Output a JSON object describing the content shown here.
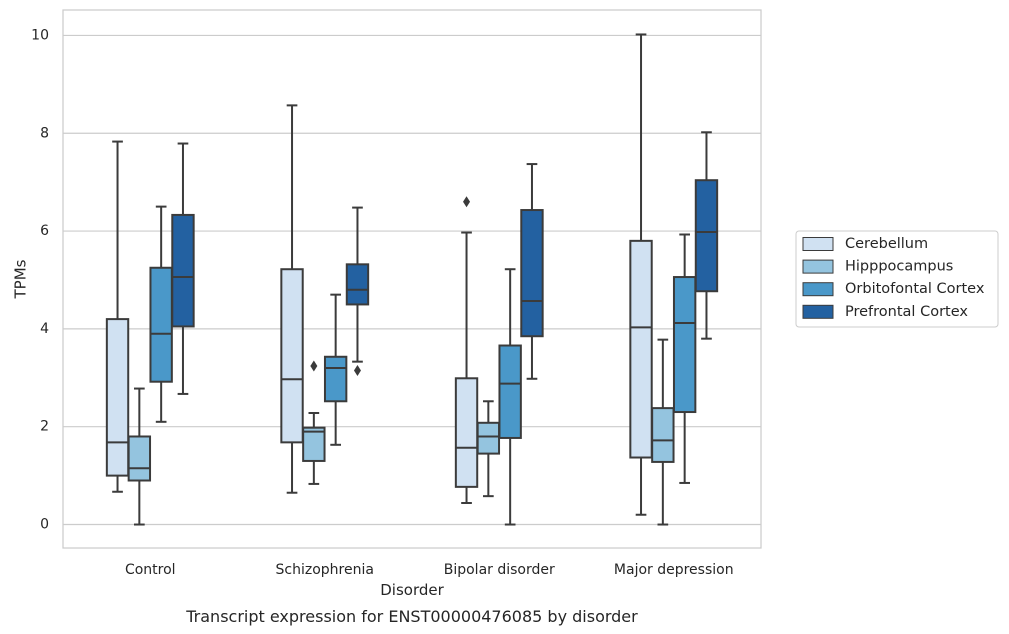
{
  "chart_data": {
    "type": "boxplot",
    "caption": "Transcript expression for ENST00000476085 by disorder",
    "xlabel": "Disorder",
    "ylabel": "TPMs",
    "ylim": [
      -0.48,
      10.52
    ],
    "yticks": [
      0,
      2,
      4,
      6,
      8,
      10
    ],
    "grid": true,
    "legend_position": "right",
    "categories": [
      "Control",
      "Schizophrenia",
      "Bipolar disorder",
      "Major depression"
    ],
    "series": [
      {
        "name": "Cerebellum",
        "color": "#d0e1f2",
        "boxes": [
          {
            "whislo": 0.67,
            "q1": 1.0,
            "med": 1.68,
            "q3": 4.2,
            "whishi": 7.83,
            "fliers": []
          },
          {
            "whislo": 0.65,
            "q1": 1.68,
            "med": 2.97,
            "q3": 5.22,
            "whishi": 8.57,
            "fliers": []
          },
          {
            "whislo": 0.44,
            "q1": 0.77,
            "med": 1.57,
            "q3": 2.99,
            "whishi": 5.97,
            "fliers": [
              6.6
            ]
          },
          {
            "whislo": 0.2,
            "q1": 1.37,
            "med": 4.03,
            "q3": 5.8,
            "whishi": 10.02,
            "fliers": []
          }
        ]
      },
      {
        "name": "Hipppocampus",
        "color": "#94c4df",
        "boxes": [
          {
            "whislo": 0.0,
            "q1": 0.9,
            "med": 1.15,
            "q3": 1.8,
            "whishi": 2.78,
            "fliers": []
          },
          {
            "whislo": 0.83,
            "q1": 1.3,
            "med": 1.9,
            "q3": 1.98,
            "whishi": 2.28,
            "fliers": [
              3.24
            ]
          },
          {
            "whislo": 0.58,
            "q1": 1.45,
            "med": 1.8,
            "q3": 2.08,
            "whishi": 2.52,
            "fliers": []
          },
          {
            "whislo": 0.0,
            "q1": 1.28,
            "med": 1.72,
            "q3": 2.38,
            "whishi": 3.78,
            "fliers": []
          }
        ]
      },
      {
        "name": "Orbitofontal Cortex",
        "color": "#4a98c9",
        "boxes": [
          {
            "whislo": 2.1,
            "q1": 2.92,
            "med": 3.9,
            "q3": 5.25,
            "whishi": 6.5,
            "fliers": []
          },
          {
            "whislo": 1.63,
            "q1": 2.52,
            "med": 3.2,
            "q3": 3.43,
            "whishi": 4.7,
            "fliers": []
          },
          {
            "whislo": 0.0,
            "q1": 1.77,
            "med": 2.88,
            "q3": 3.66,
            "whishi": 5.22,
            "fliers": []
          },
          {
            "whislo": 0.85,
            "q1": 2.3,
            "med": 4.12,
            "q3": 5.06,
            "whishi": 5.93,
            "fliers": []
          }
        ]
      },
      {
        "name": "Prefrontal Cortex",
        "color": "#2361a1",
        "boxes": [
          {
            "whislo": 2.67,
            "q1": 4.05,
            "med": 5.06,
            "q3": 6.33,
            "whishi": 7.79,
            "fliers": []
          },
          {
            "whislo": 3.33,
            "q1": 4.5,
            "med": 4.8,
            "q3": 5.32,
            "whishi": 6.48,
            "fliers": [
              3.15
            ]
          },
          {
            "whislo": 2.98,
            "q1": 3.85,
            "med": 4.57,
            "q3": 6.43,
            "whishi": 7.37,
            "fliers": []
          },
          {
            "whislo": 3.8,
            "q1": 4.77,
            "med": 5.98,
            "q3": 7.04,
            "whishi": 8.02,
            "fliers": []
          }
        ]
      }
    ]
  }
}
